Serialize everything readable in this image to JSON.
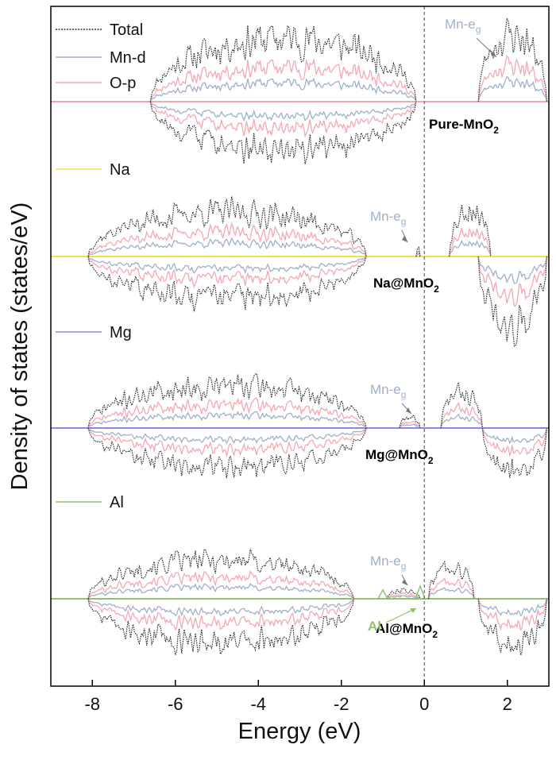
{
  "chart_data": {
    "type": "line",
    "title": "",
    "xlabel": "Energy (eV)",
    "ylabel": "Density of states (states/eV)",
    "xlim": [
      -9,
      3
    ],
    "xticks": [
      -8,
      -6,
      -4,
      -2,
      0,
      2
    ],
    "xtick_labels": [
      "-8",
      "-6",
      "-4",
      "-2",
      "0",
      "2"
    ],
    "fermi_level": 0,
    "yticks": "none",
    "legend": [
      {
        "label": "Total",
        "color": "#333333",
        "style": "dotted"
      },
      {
        "label": "Mn-d",
        "color": "#9fb0c8",
        "style": "solid"
      },
      {
        "label": "O-p",
        "color": "#f2a9b3",
        "style": "solid"
      },
      {
        "label": "Na",
        "color": "#f4e04a",
        "style": "solid"
      },
      {
        "label": "Mg",
        "color": "#8e86e6",
        "style": "solid"
      },
      {
        "label": "Al",
        "color": "#8fc26b",
        "style": "solid"
      }
    ],
    "series": [
      "Total",
      "Mn-d",
      "O-p",
      "Dopant"
    ],
    "panels": [
      {
        "label": "Pure-MnO",
        "label_sub": "2",
        "dopant": "",
        "dopant_color": "",
        "mn_eg_text": "Mn-e",
        "mn_eg_sub": "g",
        "bands": [
          {
            "start": -6.6,
            "end": -0.2,
            "up_total": 3.4,
            "dn_total": 2.6,
            "seed": 11
          },
          {
            "start": 1.3,
            "end": 2.95,
            "up_total": 3.6,
            "dn_total": 0.0,
            "seed": 23
          }
        ],
        "dopant_peaks": []
      },
      {
        "label": "Na@MnO",
        "label_sub": "2",
        "dopant": "Na",
        "dopant_color": "#f4e04a",
        "mn_eg_text": "Mn-e",
        "mn_eg_sub": "g",
        "bands": [
          {
            "start": -8.1,
            "end": -1.4,
            "up_total": 2.4,
            "dn_total": 2.3,
            "seed": 37
          },
          {
            "start": -0.2,
            "end": -0.1,
            "up_total": 0.4,
            "dn_total": 0.0,
            "seed": 41
          },
          {
            "start": 0.6,
            "end": 1.6,
            "up_total": 2.6,
            "dn_total": 0.0,
            "seed": 53
          },
          {
            "start": 1.3,
            "end": 2.95,
            "up_total": 0.0,
            "dn_total": 3.6,
            "seed": 67
          }
        ],
        "dopant_peaks": []
      },
      {
        "label": "Mg@MnO",
        "label_sub": "2",
        "dopant": "Mg",
        "dopant_color": "#8e86e6",
        "mn_eg_text": "Mn-e",
        "mn_eg_sub": "g",
        "bands": [
          {
            "start": -8.1,
            "end": -1.4,
            "up_total": 2.3,
            "dn_total": 2.1,
            "seed": 71
          },
          {
            "start": -0.6,
            "end": -0.1,
            "up_total": 0.6,
            "dn_total": 0.0,
            "seed": 79
          },
          {
            "start": 0.4,
            "end": 1.4,
            "up_total": 1.9,
            "dn_total": 0.0,
            "seed": 83
          },
          {
            "start": 1.4,
            "end": 2.95,
            "up_total": 0.0,
            "dn_total": 2.5,
            "seed": 97
          }
        ],
        "dopant_peaks": []
      },
      {
        "label": "Al@MnO",
        "label_sub": "2",
        "dopant": "Al",
        "dopant_color": "#8fc26b",
        "mn_eg_text": "Mn-e",
        "mn_eg_sub": "g",
        "dopant_annotation": "Al",
        "bands": [
          {
            "start": -8.1,
            "end": -1.7,
            "up_total": 2.1,
            "dn_total": 2.4,
            "seed": 101
          },
          {
            "start": -0.9,
            "end": -0.1,
            "up_total": 0.5,
            "dn_total": 0.0,
            "seed": 113
          },
          {
            "start": 0.1,
            "end": 1.2,
            "up_total": 1.8,
            "dn_total": 0.0,
            "seed": 127
          },
          {
            "start": 1.3,
            "end": 2.95,
            "up_total": 0.0,
            "dn_total": 2.5,
            "seed": 131
          }
        ],
        "dopant_peaks": [
          {
            "x": -1.0,
            "height": 0.35
          },
          {
            "x": -0.1,
            "height": 0.5
          }
        ]
      }
    ]
  }
}
